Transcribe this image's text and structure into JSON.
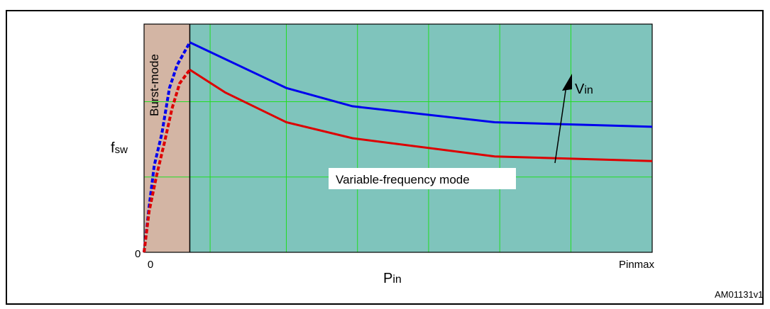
{
  "figure_title_partial": "",
  "figure_code": "AM01131v1",
  "chart_data": {
    "type": "line",
    "xlabel": "P",
    "xlabel_sub": "in",
    "ylabel": "f",
    "ylabel_sub": "SW",
    "x_tick_labels": [
      "0",
      "Pinmax"
    ],
    "y_tick_labels": [
      "0"
    ],
    "xlim": [
      0,
      1
    ],
    "ylim": [
      0,
      1
    ],
    "grid": true,
    "regions": [
      {
        "name": "Burst-mode",
        "x_range": [
          0,
          0.09
        ],
        "color": "#d3b5a4"
      },
      {
        "name": "Variable-frequency mode",
        "x_range": [
          0.09,
          1
        ],
        "color": "#7fc4bc"
      }
    ],
    "series": [
      {
        "color": "#0000ee",
        "burst_points": [
          [
            0,
            0
          ],
          [
            0.01,
            0.2
          ],
          [
            0.02,
            0.38
          ],
          [
            0.035,
            0.52
          ],
          [
            0.05,
            0.72
          ],
          [
            0.065,
            0.82
          ],
          [
            0.09,
            0.92
          ]
        ],
        "points": [
          [
            0.09,
            0.92
          ],
          [
            0.28,
            0.72
          ],
          [
            0.41,
            0.64
          ],
          [
            0.69,
            0.57
          ],
          [
            1.0,
            0.55
          ]
        ]
      },
      {
        "color": "#dd0000",
        "burst_points": [
          [
            0,
            0
          ],
          [
            0.01,
            0.18
          ],
          [
            0.025,
            0.34
          ],
          [
            0.04,
            0.48
          ],
          [
            0.055,
            0.63
          ],
          [
            0.07,
            0.74
          ],
          [
            0.09,
            0.8
          ]
        ],
        "points": [
          [
            0.09,
            0.8
          ],
          [
            0.16,
            0.7
          ],
          [
            0.28,
            0.57
          ],
          [
            0.41,
            0.5
          ],
          [
            0.69,
            0.42
          ],
          [
            1.0,
            0.4
          ]
        ]
      }
    ],
    "annotations": {
      "burst_label": "Burst-mode",
      "vfm_label": "Variable-frequency mode",
      "arrow_label": "V",
      "arrow_label_sub": "in"
    }
  }
}
